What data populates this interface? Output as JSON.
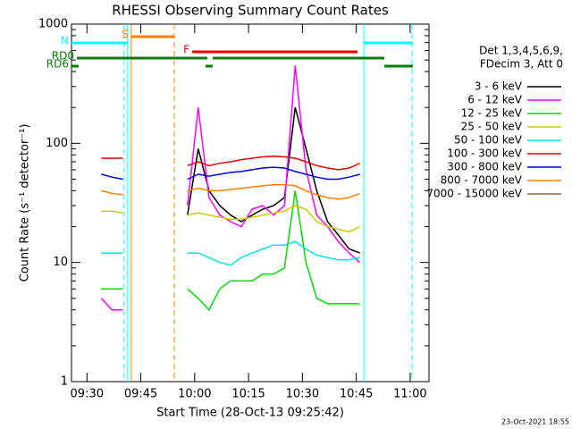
{
  "chart_data": {
    "type": "line",
    "title": "RHESSI Observing Summary Count Rates",
    "xlabel": "Start Time (28-Oct-13 09:25:42)",
    "ylabel": "Count Rate (s⁻¹ detector⁻¹)",
    "legend_title": [
      "Det 1,3,4,5,6,9,",
      "FDecim 3, Att 0"
    ],
    "timestamp": "23-Oct-2021 18:55",
    "log_y": true,
    "xlim": [
      "09:25:42",
      "11:05:15"
    ],
    "xticks": [
      "09:30",
      "09:45",
      "10:00",
      "10:15",
      "10:30",
      "10:45",
      "11:00"
    ],
    "ylim": [
      1,
      1000
    ],
    "yticks": [
      1,
      10,
      100,
      1000
    ],
    "x": [
      "09:34",
      "09:37",
      "09:40",
      "09:50",
      "09:58",
      "10:01",
      "10:04",
      "10:07",
      "10:10",
      "10:13",
      "10:16",
      "10:19",
      "10:22",
      "10:25",
      "10:28",
      "10:31",
      "10:34",
      "10:37",
      "10:40",
      "10:43",
      "10:46"
    ],
    "series": [
      {
        "name": "3 - 6 keV",
        "color": "#000000",
        "values": [
          null,
          null,
          null,
          null,
          25,
          90,
          40,
          30,
          25,
          22,
          25,
          28,
          30,
          35,
          200,
          90,
          40,
          22,
          17,
          13,
          12
        ]
      },
      {
        "name": "6 - 12 keV",
        "color": "#ff00ff",
        "values": [
          5,
          4,
          4,
          null,
          30,
          200,
          35,
          25,
          22,
          20,
          28,
          30,
          25,
          30,
          450,
          60,
          25,
          20,
          15,
          12,
          10
        ]
      },
      {
        "name": "12 - 25 keV",
        "color": "#00dd00",
        "values": [
          6,
          6,
          6,
          null,
          6,
          5,
          4,
          6,
          7,
          7,
          7,
          8,
          8,
          9,
          40,
          10,
          5,
          4.5,
          4.5,
          4.5,
          4.5
        ]
      },
      {
        "name": "25 - 50 keV",
        "color": "#cccc00",
        "values": [
          27,
          27,
          26,
          null,
          25,
          26,
          25,
          24,
          23,
          23,
          24,
          25,
          26,
          27,
          30,
          28,
          22,
          20,
          19,
          18,
          20
        ]
      },
      {
        "name": "50 - 100 keV",
        "color": "#00e5e5",
        "values": [
          12,
          12,
          12,
          null,
          12,
          12,
          11,
          10,
          9.5,
          11,
          12,
          13,
          14,
          14,
          15,
          13,
          11.5,
          11,
          10.5,
          10.5,
          11
        ]
      },
      {
        "name": "100 - 300 keV",
        "color": "#ee0000",
        "values": [
          75,
          75,
          75,
          null,
          65,
          70,
          65,
          68,
          70,
          73,
          75,
          77,
          78,
          77,
          75,
          70,
          65,
          62,
          60,
          62,
          68
        ]
      },
      {
        "name": "300 - 800 keV",
        "color": "#0000ee",
        "values": [
          55,
          52,
          50,
          null,
          50,
          55,
          53,
          55,
          57,
          58,
          60,
          62,
          63,
          62,
          58,
          55,
          52,
          50,
          50,
          52,
          55
        ]
      },
      {
        "name": "800 - 7000 keV",
        "color": "#ff8000",
        "values": [
          40,
          38,
          37,
          null,
          40,
          42,
          40,
          40,
          41,
          42,
          43,
          44,
          45,
          45,
          44,
          40,
          37,
          35,
          34,
          35,
          38
        ]
      },
      {
        "name": "7000 - 15000 keV",
        "color": "#996633",
        "values": [
          null,
          null,
          null,
          null,
          null,
          null,
          null,
          null,
          null,
          null,
          null,
          null,
          null,
          null,
          null,
          null,
          null,
          null,
          null,
          null,
          null
        ]
      }
    ],
    "flags": [
      {
        "label": "N",
        "color": "#00ffff",
        "intervals": [
          [
            "09:25:42",
            "09:41:20"
          ],
          [
            "10:47:05",
            "11:00:45"
          ]
        ]
      },
      {
        "label": "S",
        "color": "#ff8000",
        "intervals": [
          [
            "09:42:20",
            "09:54:20"
          ]
        ]
      },
      {
        "label": "F",
        "color": "#ee0000",
        "intervals": [
          [
            "09:59:18",
            "10:45:20"
          ]
        ]
      },
      {
        "label": "RD0",
        "color": "#008000",
        "intervals": [
          [
            "09:27:12",
            "10:03:32"
          ],
          [
            "10:05:00",
            "10:52:48"
          ]
        ]
      },
      {
        "label": "RD6",
        "color": "#008000",
        "intervals": [
          [
            "09:25:42",
            "09:27:40"
          ],
          [
            "10:03:00",
            "10:05:00"
          ],
          [
            "10:52:48",
            "11:00:45"
          ]
        ]
      }
    ],
    "vlines": [
      {
        "time": "09:40:20",
        "color": "#00ffff",
        "dashed": true
      },
      {
        "time": "09:41:20",
        "color": "#00ffff",
        "dashed": false
      },
      {
        "time": "09:42:20",
        "color": "#ff8000",
        "dashed": false
      },
      {
        "time": "09:54:20",
        "color": "#ff8000",
        "dashed": true
      },
      {
        "time": "10:47:05",
        "color": "#00ffff",
        "dashed": false
      },
      {
        "time": "11:00:30",
        "color": "#00ffff",
        "dashed": true
      }
    ]
  }
}
